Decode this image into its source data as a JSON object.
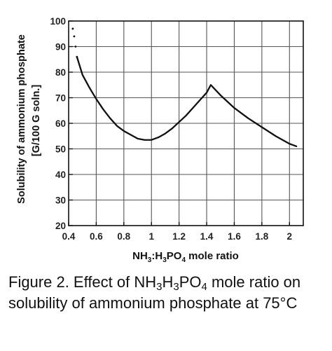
{
  "chart_data": {
    "type": "line",
    "ylabel_line1": "Solubility of ammonium phosphate",
    "ylabel_line2": "[G/100 G soln.]",
    "xlabel": {
      "prefix": "NH",
      "sub1": "3",
      "mid1": ":H",
      "sub2": "3",
      "mid2": "PO",
      "sub3": "4",
      "suffix": " mole ratio"
    },
    "xlim": [
      0.4,
      2.1
    ],
    "ylim": [
      20,
      100
    ],
    "x_ticks": [
      0.4,
      0.6,
      0.8,
      1,
      1.2,
      1.4,
      1.6,
      1.8,
      2
    ],
    "x_tick_labels": [
      "0.4",
      "0.6",
      "0.8",
      "1",
      "1.2",
      "1.4",
      "1.6",
      "1.8",
      "2"
    ],
    "y_ticks": [
      20,
      30,
      40,
      50,
      60,
      70,
      80,
      90,
      100
    ],
    "y_tick_labels": [
      "20",
      "30",
      "40",
      "50",
      "60",
      "70",
      "80",
      "90",
      "100"
    ],
    "grid": true,
    "series": [
      {
        "dotted_segment": {
          "x": [
            0.43,
            0.44,
            0.45,
            0.46
          ],
          "y": [
            97,
            94,
            90,
            86
          ]
        },
        "x": [
          0.46,
          0.5,
          0.55,
          0.6,
          0.65,
          0.7,
          0.75,
          0.8,
          0.85,
          0.9,
          0.95,
          1.0,
          1.05,
          1.1,
          1.15,
          1.2,
          1.25,
          1.3,
          1.35,
          1.4,
          1.43,
          1.5,
          1.6,
          1.7,
          1.8,
          1.9,
          2.0,
          2.05
        ],
        "y": [
          86,
          79,
          74,
          69.5,
          65.5,
          62,
          59,
          57,
          55.5,
          54,
          53.5,
          53.5,
          54.5,
          56,
          58,
          60.5,
          63,
          66,
          69,
          72,
          75,
          71,
          66,
          62,
          58.5,
          55,
          52,
          51
        ]
      }
    ],
    "line_color": "#111111"
  },
  "caption": {
    "part1": "Figure 2. Effect of NH",
    "sub1": "3",
    "part2": "H",
    "sub2": "3",
    "part3": "PO",
    "sub3": "4",
    "part4": " mole ratio on solubility of ammonium phosphate at 75°C"
  }
}
